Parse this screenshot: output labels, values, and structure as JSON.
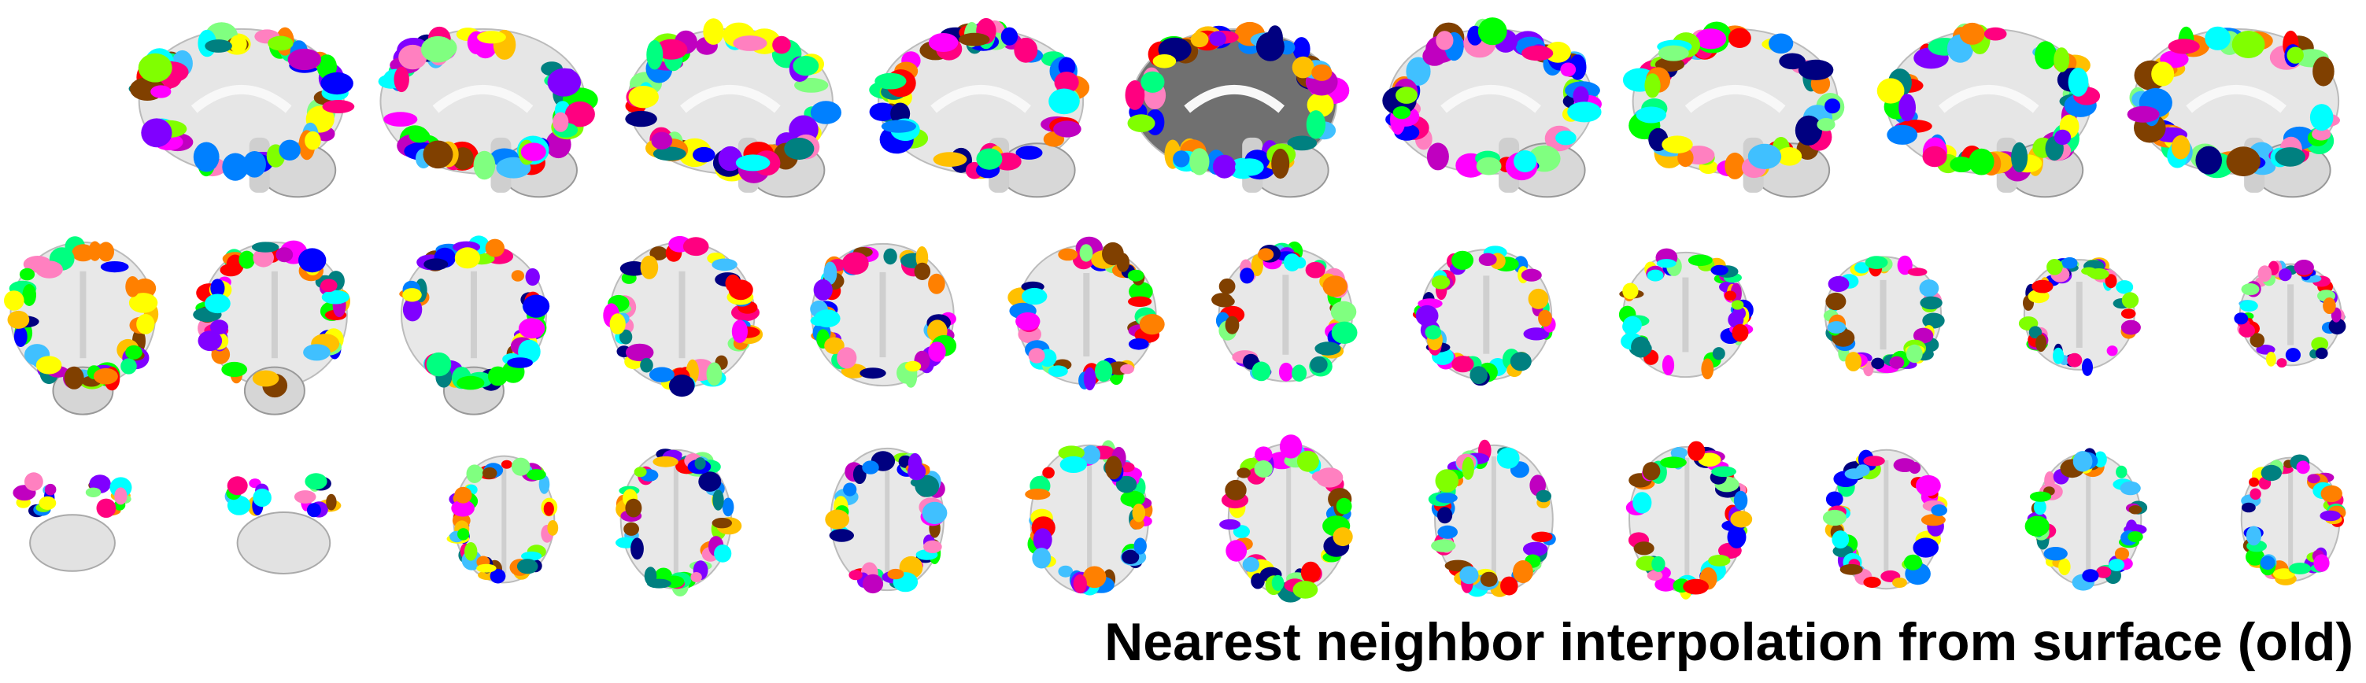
{
  "caption": "Nearest neighbor interpolation from surface (old)",
  "rows": [
    {
      "view": "sagittal",
      "count": 9
    },
    {
      "view": "coronal",
      "count": 12
    },
    {
      "view": "axial",
      "count": 12
    }
  ],
  "palette": [
    "#0000ff",
    "#ff0000",
    "#00ff00",
    "#ff00ff",
    "#ffff00",
    "#00ffff",
    "#ff8000",
    "#8000ff",
    "#ff0080",
    "#00ff80",
    "#0080ff",
    "#80ff00",
    "#000080",
    "#804000",
    "#ff80c0",
    "#40c0ff",
    "#80ff80",
    "#c000c0",
    "#ffc000",
    "#008080"
  ]
}
